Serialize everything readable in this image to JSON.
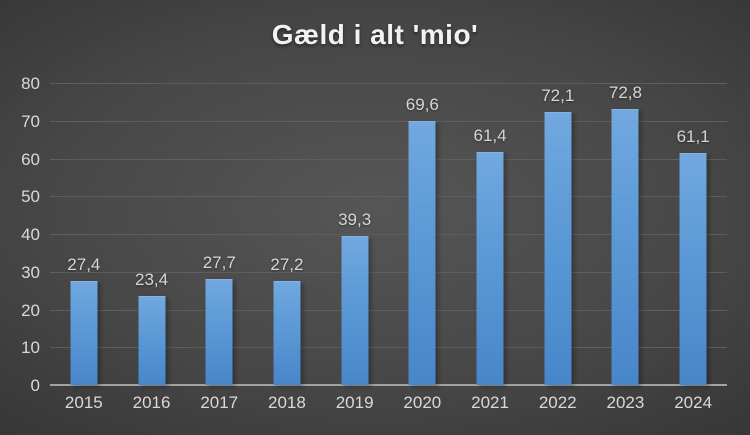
{
  "chart_data": {
    "type": "bar",
    "title": "Gæld i alt 'mio'",
    "categories": [
      "2015",
      "2016",
      "2017",
      "2018",
      "2019",
      "2020",
      "2021",
      "2022",
      "2023",
      "2024"
    ],
    "values": [
      27.4,
      23.4,
      27.7,
      27.2,
      39.3,
      69.6,
      61.4,
      72.1,
      72.8,
      61.1
    ],
    "data_labels": [
      "27,4",
      "23,4",
      "27,7",
      "27,2",
      "39,3",
      "69,6",
      "61,4",
      "72,1",
      "72,8",
      "61,1"
    ],
    "xlabel": "",
    "ylabel": "",
    "ylim": [
      0,
      80
    ],
    "ytick_step": 10,
    "ytick_labels": [
      "0",
      "10",
      "20",
      "30",
      "40",
      "50",
      "60",
      "70",
      "80"
    ],
    "grid": true,
    "legend": false,
    "colors": {
      "bar_top": "#72a8df",
      "bar_bottom": "#4886ca",
      "background_center": "#565656",
      "background_edge": "#232323",
      "gridline": "#5e5e5e",
      "axis_line": "#a2a2a2",
      "tick_text": "#d9d9d9",
      "data_label_text": "#d6d6d6",
      "title_text": "#f2f2f2"
    }
  }
}
